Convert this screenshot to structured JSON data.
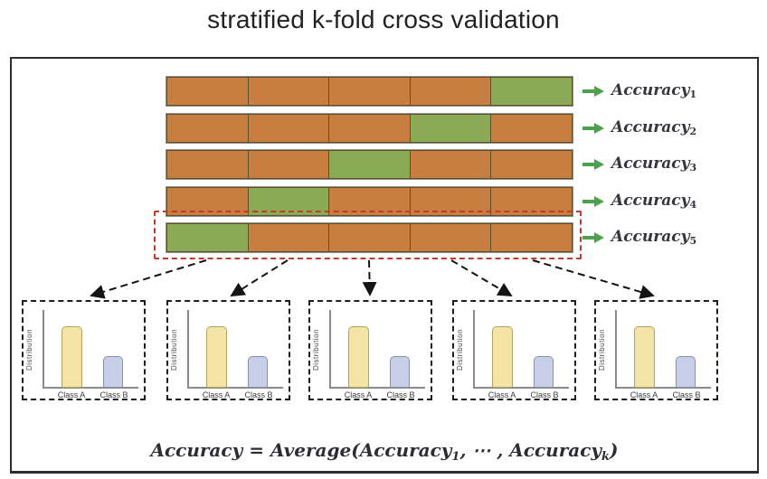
{
  "title": "stratified k-fold cross validation",
  "colors": {
    "train": "#c87e41",
    "test": "#8aaa55",
    "cell_border": "#5e5029",
    "highlight_red": "#c23a2c",
    "arrow_green": "#4ca24c",
    "frame_border": "#2d2d2d"
  },
  "folds": {
    "rows": [
      {
        "label": "Accuracy",
        "sub": "1",
        "cells": [
          "train",
          "train",
          "train",
          "train",
          "test"
        ]
      },
      {
        "label": "Accuracy",
        "sub": "2",
        "cells": [
          "train",
          "train",
          "train",
          "test",
          "train"
        ]
      },
      {
        "label": "Accuracy",
        "sub": "3",
        "cells": [
          "train",
          "train",
          "test",
          "train",
          "train"
        ]
      },
      {
        "label": "Accuracy",
        "sub": "4",
        "cells": [
          "train",
          "test",
          "train",
          "train",
          "train"
        ]
      },
      {
        "label": "Accuracy",
        "sub": "5",
        "cells": [
          "test",
          "train",
          "train",
          "train",
          "train"
        ]
      }
    ]
  },
  "charts": {
    "ylabel": "Distribution",
    "bars": [
      {
        "label": "Class A",
        "value": 0.8,
        "fill": "#f4e5a6",
        "stroke": "#b3a35c"
      },
      {
        "label": "Class B",
        "value": 0.41,
        "fill": "#c7cee8",
        "stroke": "#8791b4"
      }
    ]
  },
  "chart_data": {
    "type": "bar",
    "title": "per-fold class distribution (identical in all 5 folds)",
    "categories": [
      "Class A",
      "Class B"
    ],
    "values": [
      0.8,
      0.41
    ],
    "xlabel": "",
    "ylabel": "Distribution",
    "ylim": [
      0,
      1
    ],
    "grid": false,
    "legend": false
  },
  "formula": {
    "lhs": "Accuracy",
    "eq": "=",
    "avg": "Average(",
    "term1": "Accuracy",
    "sub1": "1",
    "dots": ", ⋯ ,",
    "term2": "Accuracy",
    "subk": "k",
    "close": ")"
  }
}
